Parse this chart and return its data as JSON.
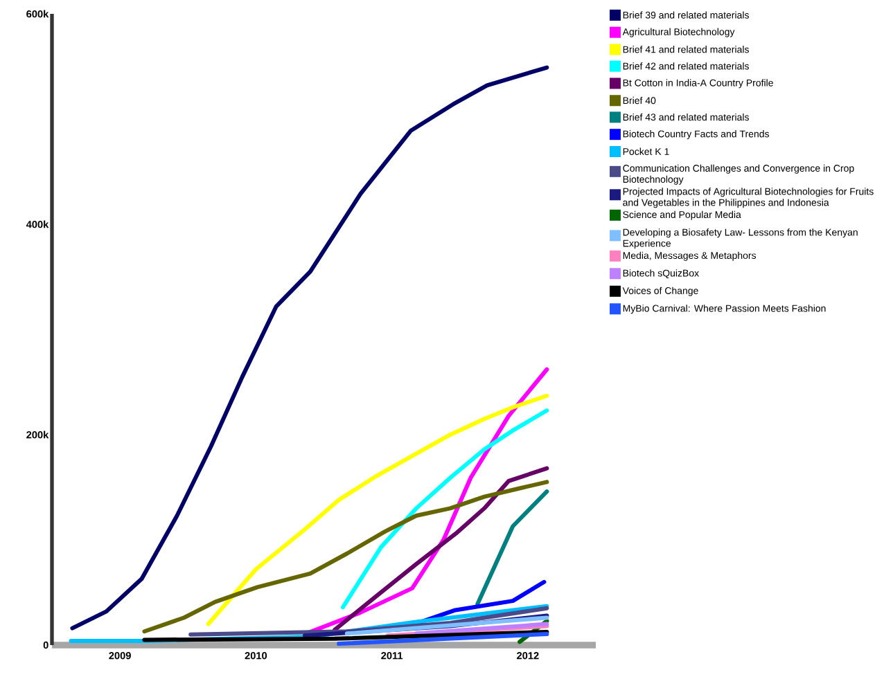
{
  "chart_data": {
    "type": "line",
    "xlim": [
      2009,
      2013
    ],
    "ylim": [
      0,
      600000
    ],
    "xticks": [
      {
        "value": 2009.5,
        "label": "2009"
      },
      {
        "value": 2010.5,
        "label": "2010"
      },
      {
        "value": 2011.5,
        "label": "2011"
      },
      {
        "value": 2012.5,
        "label": "2012"
      }
    ],
    "yticks": [
      {
        "value": 0,
        "label": "0"
      },
      {
        "value": 200000,
        "label": "200k"
      },
      {
        "value": 400000,
        "label": "400k"
      },
      {
        "value": 600000,
        "label": "600k"
      }
    ],
    "legend": "right",
    "marker": "none",
    "line_style": "solid",
    "grid": false,
    "series": [
      {
        "name": "Brief 39 and related materials",
        "color": "#000066",
        "x": [
          2009.15,
          2009.4,
          2009.66,
          2009.92,
          2010.17,
          2010.4,
          2010.65,
          2010.9,
          2011.27,
          2011.64,
          2011.95,
          2012.2,
          2012.64
        ],
        "values": [
          16000,
          32000,
          63000,
          123000,
          189000,
          255000,
          322000,
          355000,
          429000,
          489000,
          514000,
          532000,
          549000
        ]
      },
      {
        "name": "Agricultural Biotechnology",
        "color": "#ff00ff",
        "x": [
          2010.86,
          2011.27,
          2011.65,
          2011.88,
          2012.08,
          2012.36,
          2012.64
        ],
        "values": [
          10500,
          31000,
          54000,
          100000,
          159000,
          218000,
          262000
        ]
      },
      {
        "name": "Brief 41 and related materials",
        "color": "#ffff00",
        "x": [
          2010.15,
          2010.5,
          2010.86,
          2011.11,
          2011.39,
          2011.68,
          2011.93,
          2012.18,
          2012.39,
          2012.64
        ],
        "values": [
          20000,
          72000,
          110000,
          138000,
          161000,
          182000,
          200000,
          215000,
          226000,
          237000
        ]
      },
      {
        "name": "Brief 42 and related materials",
        "color": "#00ffff",
        "x": [
          2011.14,
          2011.42,
          2011.68,
          2011.93,
          2012.18,
          2012.39,
          2012.64
        ],
        "values": [
          36000,
          93000,
          130000,
          159000,
          186000,
          204000,
          223000
        ]
      },
      {
        "name": "Bt Cotton in India-A Country Profile",
        "color": "#660066",
        "x": [
          2011.08,
          2011.39,
          2011.68,
          2011.98,
          2012.18,
          2012.36,
          2012.64
        ],
        "values": [
          14500,
          47000,
          77000,
          107000,
          130000,
          156000,
          168000
        ]
      },
      {
        "name": "Brief 40",
        "color": "#666600",
        "x": [
          2009.68,
          2009.97,
          2010.2,
          2010.51,
          2010.9,
          2011.17,
          2011.45,
          2011.68,
          2011.93,
          2012.18,
          2012.44,
          2012.64
        ],
        "values": [
          13000,
          26000,
          41000,
          55000,
          68000,
          87000,
          108000,
          123000,
          130000,
          141000,
          149000,
          155000
        ]
      },
      {
        "name": "Brief 43 and related materials",
        "color": "#008080",
        "x": [
          2012.13,
          2012.39,
          2012.64
        ],
        "values": [
          39000,
          113000,
          146000
        ]
      },
      {
        "name": "Biotech Country Facts and Trends",
        "color": "#0000ff",
        "x": [
          2011.69,
          2011.96,
          2012.39,
          2012.62
        ],
        "values": [
          21000,
          33000,
          42000,
          60000
        ]
      },
      {
        "name": "Pocket K 1",
        "color": "#00bfff",
        "x": [
          2009.14,
          2009.69,
          2010.91,
          2011.68,
          2012.64
        ],
        "values": [
          4000,
          4000,
          8000,
          22000,
          37000
        ]
      },
      {
        "name": "Communication Challenges and Convergence in Crop Biotechnology",
        "color": "#4b4b8c",
        "x": [
          2010.02,
          2011.17,
          2011.93,
          2012.64
        ],
        "values": [
          10000,
          13000,
          21000,
          35000
        ]
      },
      {
        "name": "Projected Impacts of Agricultural Biotechnologies for Fruits and Vegetables in the Philippines and Indonesia",
        "color": "#1a1a80",
        "x": [
          2010.86,
          2011.93,
          2012.64
        ],
        "values": [
          9000,
          18000,
          28000
        ]
      },
      {
        "name": "Science and Popular Media",
        "color": "#006600",
        "x": [
          2012.44,
          2012.64
        ],
        "values": [
          3000,
          23000
        ]
      },
      {
        "name": "Developing a Biosafety Law- Lessons from the Kenyan Experience",
        "color": "#80bfff",
        "x": [
          2011.17,
          2012.64
        ],
        "values": [
          11000,
          26000
        ]
      },
      {
        "name": "Media, Messages & Metaphors",
        "color": "#ff80c0",
        "x": [
          2011.47,
          2012.64
        ],
        "values": [
          9000,
          18000
        ]
      },
      {
        "name": "Biotech sQuizBox",
        "color": "#bf80ff",
        "x": [
          2011.68,
          2012.64
        ],
        "values": [
          11000,
          20000
        ]
      },
      {
        "name": "Voices of Change",
        "color": "#000000",
        "x": [
          2009.68,
          2011.08,
          2012.64
        ],
        "values": [
          5000,
          6000,
          12500
        ]
      },
      {
        "name": "MyBio Carnival: Where Passion Meets Fashion",
        "color": "#2255ff",
        "x": [
          2011.11,
          2012.64
        ],
        "values": [
          1300,
          10500
        ]
      }
    ]
  }
}
